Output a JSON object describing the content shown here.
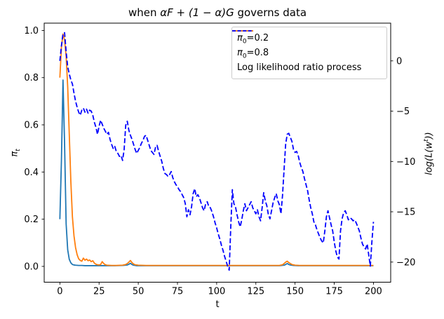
{
  "figure": {
    "title": {
      "prefix": "when ",
      "math": "αF + (1 − α)G",
      "suffix": " governs data"
    }
  },
  "axes": {
    "x_label": "t",
    "left_label": {
      "symbol": "π",
      "sub": "t"
    },
    "right_label": {
      "prefix": "log(L(w",
      "sup": "t",
      "suffix": "))"
    }
  },
  "legend": {
    "items": [
      {
        "symbol": "π",
        "sub": "0",
        "rest": "=0.2"
      },
      {
        "symbol": "π",
        "sub": "0",
        "rest": "=0.8"
      },
      {
        "label": "Log likelihood ratio process"
      }
    ]
  },
  "chart_data": {
    "type": "line",
    "title": "when αF + (1 − α)G governs data",
    "xlabel": "t",
    "ylabel_left": "π_t",
    "ylabel_right": "log(L(w^t))",
    "grid": false,
    "legend_position": "upper right",
    "xlim": [
      -10,
      211
    ],
    "ylim_left": [
      -0.067,
      1.031
    ],
    "ylim_right": [
      -22.0,
      3.75
    ],
    "xticks": {
      "values": [
        0,
        25,
        50,
        75,
        100,
        125,
        150,
        175,
        200
      ],
      "labels": [
        "0",
        "25",
        "50",
        "75",
        "100",
        "125",
        "150",
        "175",
        "200"
      ]
    },
    "yticks_left": {
      "values": [
        0.0,
        0.2,
        0.4,
        0.6,
        0.8,
        1.0
      ],
      "labels": [
        "0.0",
        "0.2",
        "0.4",
        "0.6",
        "0.8",
        "1.0"
      ]
    },
    "yticks_right": {
      "values": [
        0,
        -5,
        -10,
        -15,
        -20
      ],
      "labels": [
        "0",
        "−5",
        "−10",
        "−15",
        "−20"
      ]
    },
    "series": [
      {
        "id": "pi0-02",
        "name": "π0=0.2",
        "color": "#1f77b4",
        "style": "solid",
        "axis": "left",
        "x": [
          0,
          1,
          2,
          3,
          4,
          5,
          6,
          7,
          8,
          9,
          10,
          12,
          14,
          16,
          20,
          25,
          30,
          35,
          40,
          43,
          44,
          45,
          46,
          47,
          49,
          55,
          70,
          90,
          110,
          130,
          140,
          143,
          144,
          145,
          146,
          147,
          149,
          152,
          160,
          180,
          200
        ],
        "y": [
          0.2,
          0.45,
          0.79,
          0.52,
          0.18,
          0.07,
          0.03,
          0.015,
          0.008,
          0.006,
          0.005,
          0.004,
          0.004,
          0.003,
          0.003,
          0.003,
          0.003,
          0.003,
          0.004,
          0.006,
          0.009,
          0.013,
          0.008,
          0.005,
          0.003,
          0.003,
          0.003,
          0.003,
          0.003,
          0.003,
          0.003,
          0.005,
          0.008,
          0.012,
          0.008,
          0.006,
          0.004,
          0.003,
          0.003,
          0.003,
          0.003
        ]
      },
      {
        "id": "pi0-08",
        "name": "π0=0.8",
        "color": "#ff7f0e",
        "style": "solid",
        "axis": "left",
        "x": [
          0,
          1,
          2,
          3,
          4,
          5,
          6,
          7,
          8,
          9,
          10,
          11,
          12,
          13,
          14,
          15,
          16,
          17,
          18,
          19,
          20,
          21,
          22,
          23,
          24,
          25,
          26,
          27,
          28,
          29,
          30,
          33,
          36,
          40,
          42,
          43,
          44,
          45,
          46,
          47,
          48,
          50,
          55,
          60,
          70,
          80,
          90,
          100,
          110,
          120,
          130,
          140,
          142,
          143,
          144,
          145,
          146,
          147,
          148,
          150,
          153,
          160,
          170,
          180,
          190,
          200
        ],
        "y": [
          0.8,
          0.93,
          0.985,
          0.96,
          0.89,
          0.76,
          0.56,
          0.36,
          0.21,
          0.13,
          0.08,
          0.05,
          0.032,
          0.025,
          0.022,
          0.035,
          0.026,
          0.031,
          0.024,
          0.027,
          0.02,
          0.024,
          0.014,
          0.009,
          0.007,
          0.006,
          0.008,
          0.02,
          0.012,
          0.007,
          0.005,
          0.004,
          0.004,
          0.005,
          0.008,
          0.012,
          0.018,
          0.025,
          0.016,
          0.01,
          0.007,
          0.005,
          0.004,
          0.004,
          0.004,
          0.004,
          0.004,
          0.004,
          0.004,
          0.004,
          0.004,
          0.004,
          0.007,
          0.012,
          0.018,
          0.022,
          0.016,
          0.012,
          0.008,
          0.005,
          0.004,
          0.004,
          0.004,
          0.004,
          0.004,
          0.004
        ]
      },
      {
        "id": "log-likelihood-ratio",
        "name": "Log likelihood ratio process",
        "color": "#0000ff",
        "style": "dashed",
        "axis": "right",
        "x_start": 0,
        "x_step": 1,
        "y": [
          0.0,
          1.5,
          2.7,
          2.8,
          0.9,
          -0.6,
          -1.3,
          -1.9,
          -2.3,
          -3.2,
          -4.0,
          -4.6,
          -5.1,
          -5.4,
          -4.9,
          -4.7,
          -5.1,
          -4.8,
          -5.2,
          -4.9,
          -5.0,
          -5.4,
          -6.1,
          -6.6,
          -7.3,
          -6.5,
          -5.9,
          -6.3,
          -6.7,
          -7.0,
          -7.3,
          -7.1,
          -7.8,
          -8.3,
          -8.7,
          -8.5,
          -9.0,
          -9.2,
          -9.5,
          -9.4,
          -9.9,
          -8.8,
          -6.4,
          -6.0,
          -6.9,
          -7.4,
          -7.8,
          -8.3,
          -8.8,
          -9.2,
          -8.9,
          -8.6,
          -8.2,
          -7.9,
          -7.5,
          -7.4,
          -7.9,
          -8.4,
          -8.9,
          -9.1,
          -9.3,
          -8.6,
          -8.4,
          -9.0,
          -9.5,
          -10.0,
          -10.7,
          -11.2,
          -11.3,
          -11.5,
          -11.3,
          -11.0,
          -11.6,
          -12.0,
          -12.3,
          -12.5,
          -12.8,
          -13.0,
          -13.3,
          -13.6,
          -14.2,
          -15.5,
          -14.8,
          -15.3,
          -14.5,
          -13.2,
          -12.7,
          -13.5,
          -13.3,
          -13.6,
          -14.1,
          -14.6,
          -14.9,
          -14.2,
          -14.0,
          -14.5,
          -14.6,
          -15.0,
          -15.5,
          -16.1,
          -16.6,
          -17.2,
          -17.7,
          -18.3,
          -18.8,
          -19.4,
          -19.9,
          -20.4,
          -20.8,
          -16.5,
          -12.8,
          -14.2,
          -14.5,
          -15.3,
          -16.0,
          -16.5,
          -15.8,
          -14.9,
          -14.2,
          -14.9,
          -14.6,
          -14.3,
          -14.0,
          -14.6,
          -14.9,
          -15.2,
          -14.8,
          -15.5,
          -15.9,
          -14.6,
          -13.1,
          -13.9,
          -14.4,
          -15.3,
          -15.7,
          -14.9,
          -14.1,
          -13.6,
          -13.2,
          -13.9,
          -14.3,
          -15.2,
          -13.4,
          -10.8,
          -8.3,
          -7.3,
          -7.2,
          -7.6,
          -8.0,
          -8.8,
          -9.1,
          -9.0,
          -9.4,
          -10.1,
          -10.6,
          -11.0,
          -11.7,
          -12.3,
          -12.9,
          -13.8,
          -14.6,
          -15.2,
          -16.0,
          -16.3,
          -16.8,
          -17.2,
          -17.6,
          -17.9,
          -18.1,
          -16.9,
          -15.5,
          -14.9,
          -15.6,
          -16.3,
          -16.9,
          -18.0,
          -18.9,
          -19.5,
          -19.7,
          -16.9,
          -15.7,
          -15.1,
          -14.9,
          -15.3,
          -15.8,
          -15.6,
          -15.7,
          -15.9,
          -15.8,
          -16.1,
          -16.5,
          -16.9,
          -17.6,
          -18.2,
          -18.5,
          -18.7,
          -18.2,
          -19.3,
          -20.4,
          -18.0,
          -16.0
        ]
      }
    ]
  }
}
